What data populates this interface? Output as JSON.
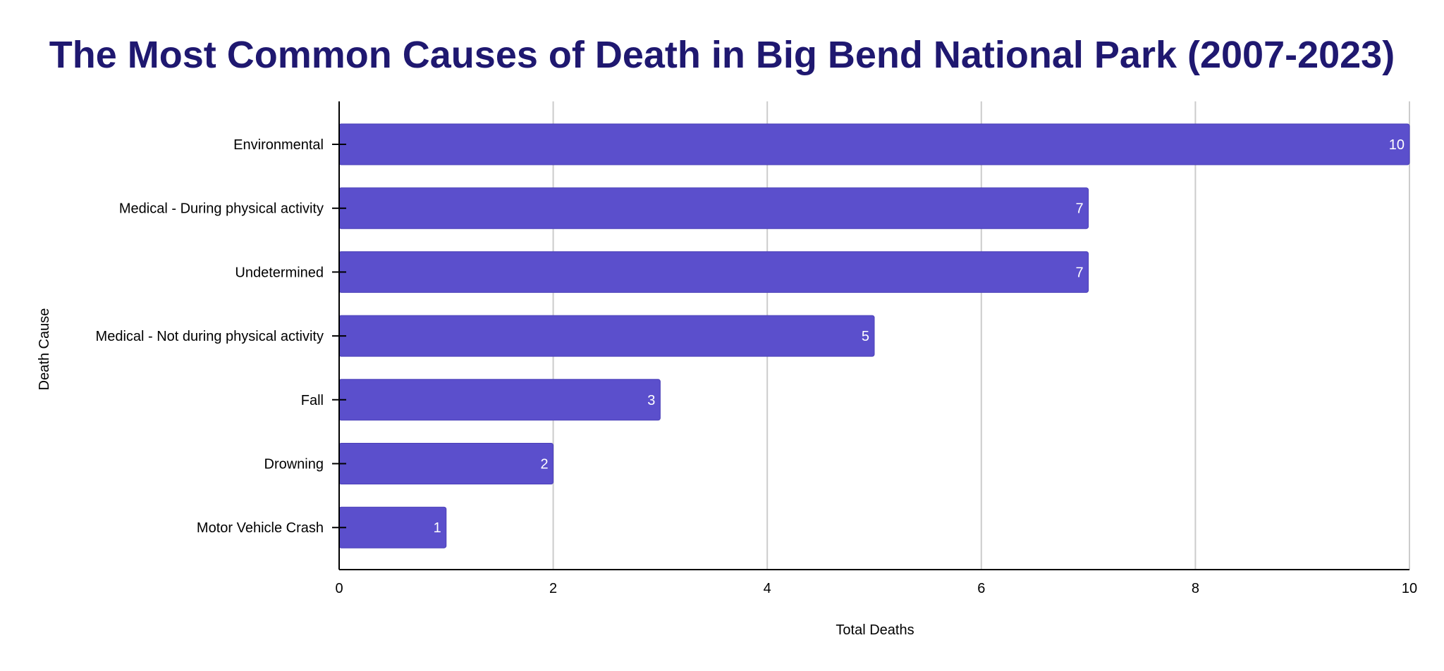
{
  "chart_data": {
    "type": "bar",
    "orientation": "horizontal",
    "title": "The Most Common Causes of Death in Big Bend National Park (2007-2023)",
    "xlabel": "Total Deaths",
    "ylabel": "Death Cause",
    "categories": [
      "Environmental",
      "Medical - During physical activity",
      "Undetermined",
      "Medical - Not during physical activity",
      "Fall",
      "Drowning",
      "Motor Vehicle Crash"
    ],
    "values": [
      10,
      7,
      7,
      5,
      3,
      2,
      1
    ],
    "xlim": [
      0,
      10
    ],
    "xticks": [
      "0",
      "2",
      "4",
      "6",
      "8",
      "10"
    ],
    "grid": "vertical",
    "data_labels": true,
    "legend": "none"
  },
  "colors": {
    "title": "#1f1870",
    "bar": "#5b4fcc",
    "bar_edge": "#4b40b8",
    "grid": "#cccccc",
    "axis": "#000000",
    "text": "#000000",
    "data_label": "#ffffff"
  }
}
